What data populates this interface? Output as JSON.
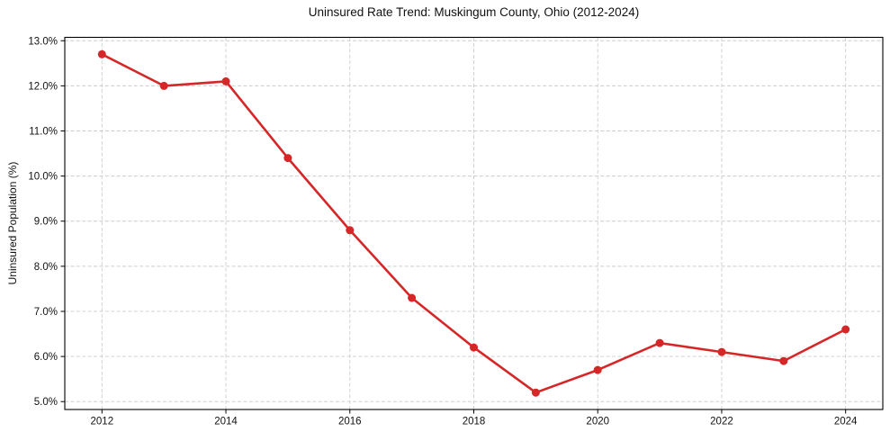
{
  "chart_data": {
    "type": "line",
    "title": "Uninsured Rate Trend: Muskingum County, Ohio (2012-2024)",
    "xlabel": "",
    "ylabel": "Uninsured Population (%)",
    "x": [
      2012,
      2013,
      2014,
      2015,
      2016,
      2017,
      2018,
      2019,
      2020,
      2021,
      2022,
      2023,
      2024
    ],
    "values": [
      12.7,
      12.0,
      12.1,
      10.4,
      8.8,
      7.3,
      6.2,
      5.2,
      5.7,
      6.3,
      6.1,
      5.9,
      6.6
    ],
    "x_ticks": [
      2012,
      2014,
      2016,
      2018,
      2020,
      2022,
      2024
    ],
    "x_tick_labels": [
      "2012",
      "2014",
      "2016",
      "2018",
      "2020",
      "2022",
      "2024"
    ],
    "y_ticks": [
      5,
      6,
      7,
      8,
      9,
      10,
      11,
      12,
      13
    ],
    "y_tick_labels": [
      "5.0%",
      "6.0%",
      "7.0%",
      "8.0%",
      "9.0%",
      "10.0%",
      "11.0%",
      "12.0%",
      "13.0%"
    ],
    "xlim": [
      2011.4,
      2024.6
    ],
    "ylim": [
      4.825,
      13.075
    ],
    "grid": true,
    "legend": false,
    "line_color": "#d62728",
    "marker": "circle",
    "background": "#ffffff"
  }
}
